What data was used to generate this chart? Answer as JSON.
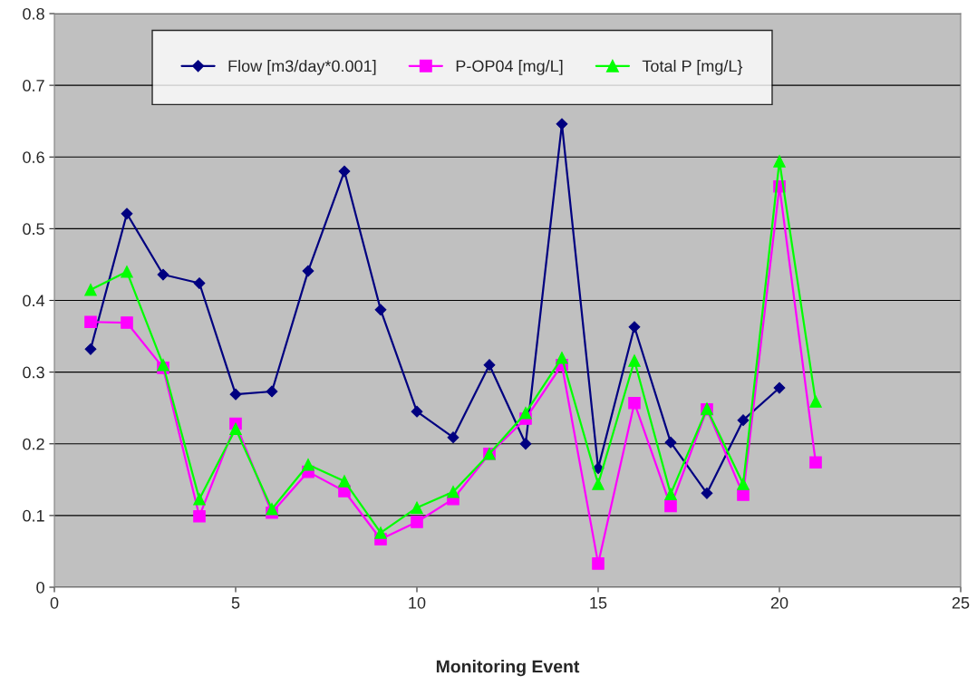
{
  "chart_data": {
    "type": "line",
    "xlabel": "Monitoring Event",
    "xlim": [
      0,
      25
    ],
    "xticks": [
      0,
      5,
      10,
      15,
      20,
      25
    ],
    "ylim": [
      0,
      0.8
    ],
    "yticks": [
      0,
      0.1,
      0.2,
      0.3,
      0.4,
      0.5,
      0.6,
      0.7,
      0.8
    ],
    "grid": "y",
    "legend": "top",
    "line_style": "solid",
    "series": [
      {
        "name": "Flow [m3/day*0.001]",
        "color": "#000080",
        "marker": "diamond",
        "x": [
          1,
          2,
          3,
          4,
          5,
          6,
          7,
          8,
          9,
          10,
          11,
          12,
          13,
          14,
          15,
          16,
          17,
          18,
          19,
          20
        ],
        "values": [
          0.332,
          0.521,
          0.436,
          0.424,
          0.269,
          0.273,
          0.441,
          0.58,
          0.387,
          0.245,
          0.209,
          0.31,
          0.2,
          0.646,
          0.166,
          0.363,
          0.202,
          0.131,
          0.233,
          0.278
        ]
      },
      {
        "name": "P-OP04 [mg/L]",
        "color": "#ff00ff",
        "marker": "square",
        "x": [
          1,
          2,
          3,
          4,
          5,
          6,
          7,
          8,
          9,
          10,
          11,
          12,
          13,
          14,
          15,
          16,
          17,
          18,
          19,
          20,
          21
        ],
        "values": [
          0.37,
          0.369,
          0.306,
          0.099,
          0.228,
          0.104,
          0.161,
          0.134,
          0.067,
          0.091,
          0.123,
          0.186,
          0.235,
          0.31,
          0.033,
          0.257,
          0.113,
          0.248,
          0.129,
          0.559,
          0.174
        ]
      },
      {
        "name": "Total P [mg/L}",
        "color": "#00ff00",
        "marker": "triangle",
        "x": [
          1,
          2,
          3,
          4,
          5,
          6,
          7,
          8,
          9,
          10,
          11,
          12,
          13,
          14,
          15,
          16,
          17,
          18,
          19,
          20,
          21
        ],
        "values": [
          0.415,
          0.44,
          0.31,
          0.123,
          0.221,
          0.109,
          0.171,
          0.148,
          0.076,
          0.111,
          0.133,
          0.186,
          0.243,
          0.32,
          0.144,
          0.316,
          0.13,
          0.249,
          0.144,
          0.594,
          0.259
        ]
      }
    ]
  }
}
